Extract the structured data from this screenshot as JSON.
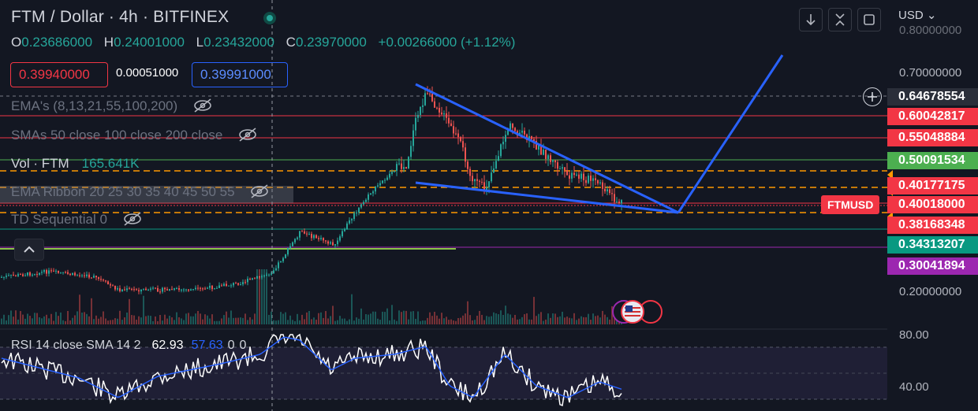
{
  "header": {
    "title": "FTM / Dollar · 4h · BITFINEX",
    "ohlc": [
      {
        "k": "O",
        "v": "0.23686000"
      },
      {
        "k": "H",
        "v": "0.24001000"
      },
      {
        "k": "L",
        "v": "0.23432000"
      },
      {
        "k": "C",
        "v": "0.23970000"
      }
    ],
    "change": "+0.00266000 (+1.12%)",
    "sell_price": "0.39940000",
    "spread": "0.00051000",
    "buy_price": "0.39991000",
    "currency": "USD"
  },
  "indicators": {
    "ema": "EMA's (8,13,21,55,100,200)",
    "sma": "SMAs 50 close 100 close 200 close",
    "vol_name": "Vol · FTM",
    "vol_value": "165.641K",
    "ribbon": "EMA Ribbon 20 25 30 35 40 45 50 55",
    "td": "TD Sequential 0"
  },
  "rsi": {
    "name": "RSI 14 close SMA 14 2",
    "value": "62.93",
    "sma": "57.63",
    "z1": "0",
    "z2": "0"
  },
  "price_axis": {
    "labels": [
      "0.80000000",
      "0.70000000",
      "0.20000000"
    ],
    "rsi_labels": [
      "80.00",
      "40.00"
    ]
  },
  "levels": [
    {
      "label": "0.64678554",
      "color": "#2a2e39"
    },
    {
      "label": "0.60042817",
      "color": "#f23645"
    },
    {
      "label": "0.55048884",
      "color": "#f23645"
    },
    {
      "label": "0.50091534",
      "color": "#4caf50"
    },
    {
      "label": "0.40177175",
      "color": "#f23645"
    },
    {
      "label": "0.40018000",
      "color": "#f23645"
    },
    {
      "label": "0.38168348",
      "color": "#f23645"
    },
    {
      "label": "0.34313207",
      "color": "#089981"
    },
    {
      "label": "0.30041894",
      "color": "#9c27b0"
    }
  ],
  "symbol_tag": "FTMUSD",
  "colors": {
    "up": "#26a69a",
    "down": "#ef5350",
    "trend": "#2962ff",
    "orange": "#ff9800"
  }
}
